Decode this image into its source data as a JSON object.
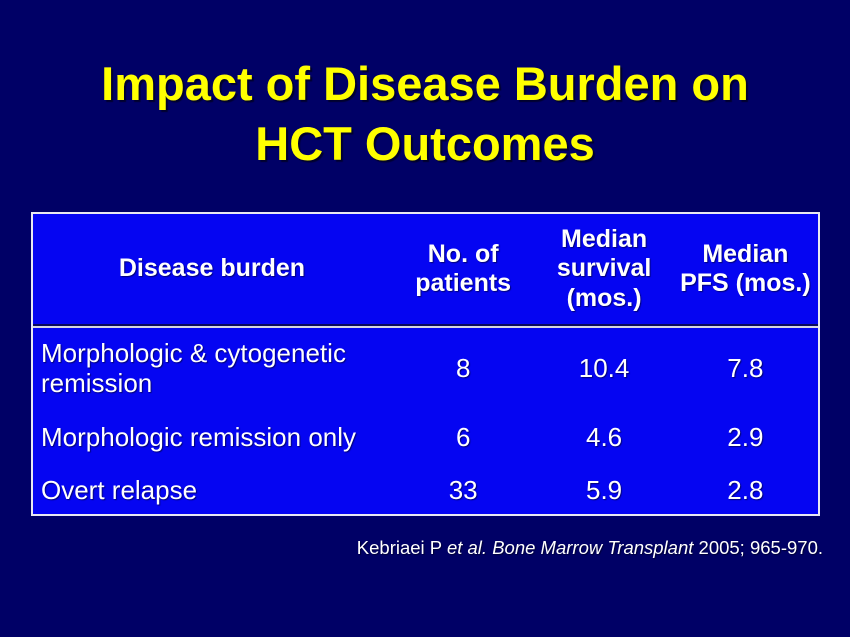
{
  "theme": {
    "slide_bg": "#000066",
    "table_bg": "#0505F2",
    "table_border": "#E9E9F2",
    "divider_dark": "#0A0A5E",
    "divider_light": "#D6D6E2",
    "title_color": "#FFFF00",
    "text_color": "#FFFFFF"
  },
  "title": {
    "line1": "Impact of Disease Burden on",
    "line2": "HCT Outcomes"
  },
  "table": {
    "headers": [
      "Disease burden",
      "No. of patients",
      "Median survival (mos.)",
      "Median PFS (mos.)"
    ],
    "rows": [
      {
        "label": "Morphologic & cytogenetic remission",
        "patients": "8",
        "survival": "10.4",
        "pfs": "7.8"
      },
      {
        "label": "Morphologic remission only",
        "patients": "6",
        "survival": "4.6",
        "pfs": "2.9"
      },
      {
        "label": "Overt relapse",
        "patients": "33",
        "survival": "5.9",
        "pfs": "2.8"
      }
    ]
  },
  "citation": {
    "normal_start": "Kebriaei P ",
    "italic": "et al. Bone Marrow Transplant ",
    "normal_end": "2005; 965-970."
  }
}
